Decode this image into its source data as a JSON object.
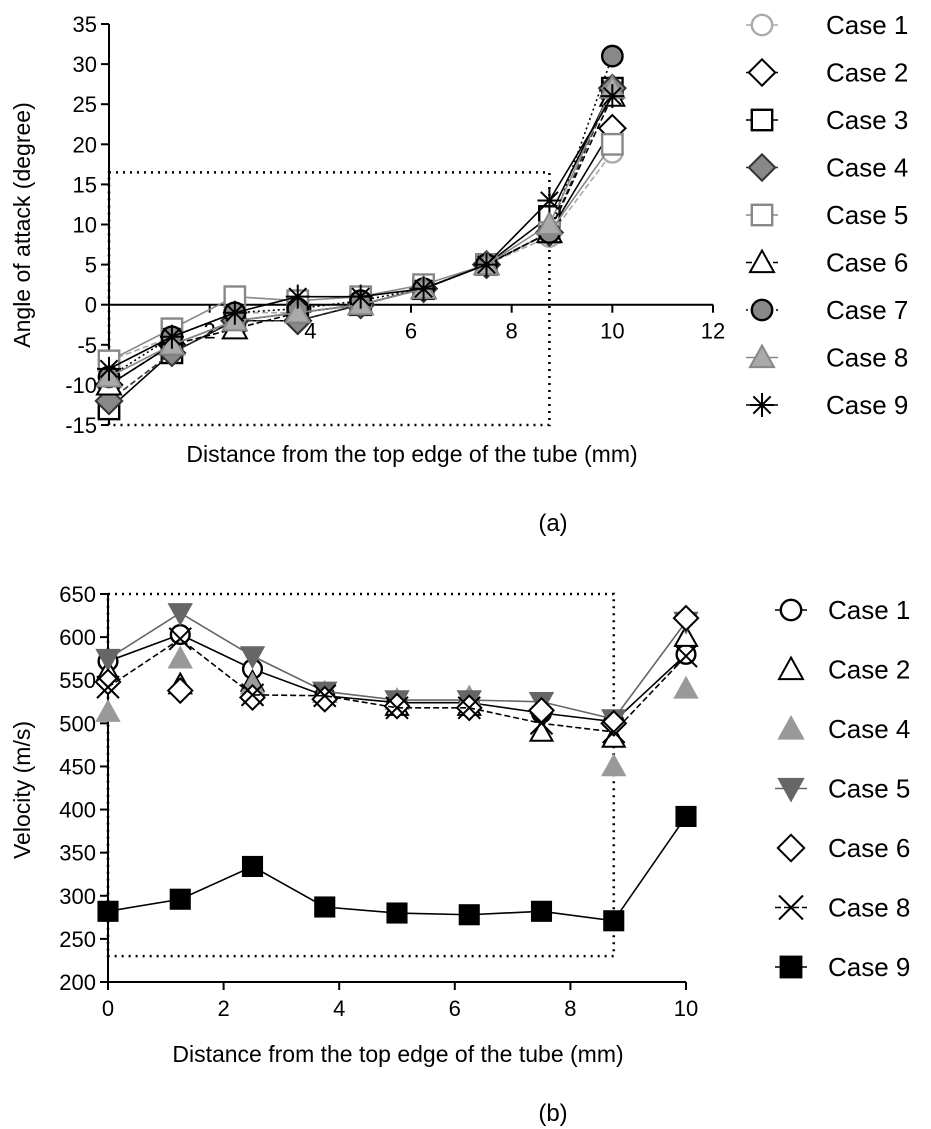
{
  "chart_data": [
    {
      "type": "line",
      "panel_label": "(a)",
      "xlabel": "Distance from the top edge of the tube (mm)",
      "ylabel": "Angle of attack  (degree)",
      "xlim": [
        0,
        12
      ],
      "ylim": [
        -15,
        35
      ],
      "xticks": [
        2,
        4,
        6,
        8,
        10,
        12
      ],
      "yticks": [
        -15,
        -10,
        -5,
        0,
        5,
        10,
        15,
        20,
        25,
        30,
        35
      ],
      "x": [
        0,
        1.25,
        2.5,
        3.75,
        5,
        6.25,
        7.5,
        8.75,
        10
      ],
      "annotation_box": {
        "x": [
          0,
          8.75
        ],
        "y": [
          -15,
          16.5
        ],
        "style": "dotted"
      },
      "legend_position": "right",
      "series": [
        {
          "name": "Case 1",
          "values": [
            -7,
            -4,
            -1,
            -1,
            0,
            2,
            5,
            8.5,
            19
          ],
          "color": "#aaaaaa",
          "marker": "circle",
          "marker_fill": "none",
          "line": "dashed"
        },
        {
          "name": "Case 2",
          "values": [
            -10,
            -5,
            -2,
            -2,
            0,
            2,
            5,
            9,
            22
          ],
          "color": "#000000",
          "marker": "diamond",
          "marker_fill": "none",
          "line": "solid"
        },
        {
          "name": "Case 3",
          "values": [
            -13,
            -6,
            -2,
            -1,
            0,
            2,
            5,
            11,
            27
          ],
          "color": "#000000",
          "marker": "square",
          "marker_fill": "none",
          "line": "solid"
        },
        {
          "name": "Case 4",
          "values": [
            -12,
            -6,
            -2,
            -2,
            0,
            2,
            5,
            9,
            27
          ],
          "color": "#333333",
          "marker": "diamond",
          "marker_fill": "#888888",
          "line": "dashed"
        },
        {
          "name": "Case 5",
          "values": [
            -7,
            -3,
            1,
            0.5,
            1,
            2.5,
            5,
            9,
            20
          ],
          "color": "#888888",
          "marker": "square",
          "marker_fill": "none",
          "line": "solid"
        },
        {
          "name": "Case 6",
          "values": [
            -10,
            -5,
            -3,
            -1,
            0,
            2,
            5,
            9,
            26
          ],
          "color": "#000000",
          "marker": "triangle-up",
          "marker_fill": "none",
          "line": "dashed"
        },
        {
          "name": "Case 7",
          "values": [
            -9,
            -4,
            -1,
            -0.5,
            0.5,
            2,
            5,
            9,
            31
          ],
          "color": "#000000",
          "marker": "circle",
          "marker_fill": "#888888",
          "line": "dotted"
        },
        {
          "name": "Case 8",
          "values": [
            -9,
            -5,
            -2,
            -1,
            0,
            2,
            5,
            10,
            27
          ],
          "color": "#888888",
          "marker": "triangle-up",
          "marker_fill": "#aaaaaa",
          "line": "solid"
        },
        {
          "name": "Case 9",
          "values": [
            -8,
            -4,
            -1,
            1,
            1,
            2,
            5,
            13,
            26
          ],
          "color": "#000000",
          "marker": "asterisk",
          "marker_fill": "none",
          "line": "solid"
        }
      ]
    },
    {
      "type": "line",
      "panel_label": "(b)",
      "xlabel": "Distance from the top edge of the tube (mm)",
      "ylabel": "Velocity (m/s)",
      "xlim": [
        0,
        10
      ],
      "ylim": [
        200,
        650
      ],
      "xticks": [
        0,
        2,
        4,
        6,
        8,
        10
      ],
      "yticks": [
        200,
        250,
        300,
        350,
        400,
        450,
        500,
        550,
        600,
        650
      ],
      "x": [
        0,
        1.25,
        2.5,
        3.75,
        5,
        6.25,
        7.5,
        8.75,
        10
      ],
      "annotation_box": {
        "x": [
          0,
          8.75
        ],
        "y": [
          230,
          650
        ],
        "style": "dotted"
      },
      "legend_position": "right",
      "series": [
        {
          "name": "Case 1",
          "values": [
            572,
            603,
            563,
            532,
            524,
            524,
            512,
            502,
            580
          ],
          "color": "#000000",
          "marker": "circle",
          "marker_fill": "none",
          "line": "solid"
        },
        {
          "name": "Case 2",
          "values": [
            560,
            545,
            548,
            535,
            520,
            520,
            490,
            483,
            600
          ],
          "color": "#000000",
          "marker": "triangle-up",
          "marker_fill": "none",
          "line": "none"
        },
        {
          "name": "Case 4",
          "values": [
            513,
            575,
            545,
            535,
            527,
            530,
            522,
            450,
            540
          ],
          "color": "#999999",
          "marker": "triangle-up",
          "marker_fill": "#999999",
          "line": "none"
        },
        {
          "name": "Case 5",
          "values": [
            575,
            628,
            578,
            537,
            527,
            527,
            525,
            505,
            618
          ],
          "color": "#666666",
          "marker": "triangle-down",
          "marker_fill": "#666666",
          "line": "solid"
        },
        {
          "name": "Case 6",
          "values": [
            548,
            538,
            530,
            528,
            520,
            518,
            515,
            500,
            622
          ],
          "color": "#000000",
          "marker": "diamond",
          "marker_fill": "none",
          "line": "none"
        },
        {
          "name": "Case 8",
          "values": [
            542,
            598,
            533,
            532,
            518,
            518,
            500,
            490,
            578
          ],
          "color": "#000000",
          "marker": "x",
          "marker_fill": "none",
          "line": "dashed"
        },
        {
          "name": "Case 9",
          "values": [
            282,
            296,
            334,
            287,
            280,
            278,
            282,
            271,
            392
          ],
          "color": "#000000",
          "marker": "square",
          "marker_fill": "#000000",
          "line": "solid"
        }
      ]
    }
  ]
}
